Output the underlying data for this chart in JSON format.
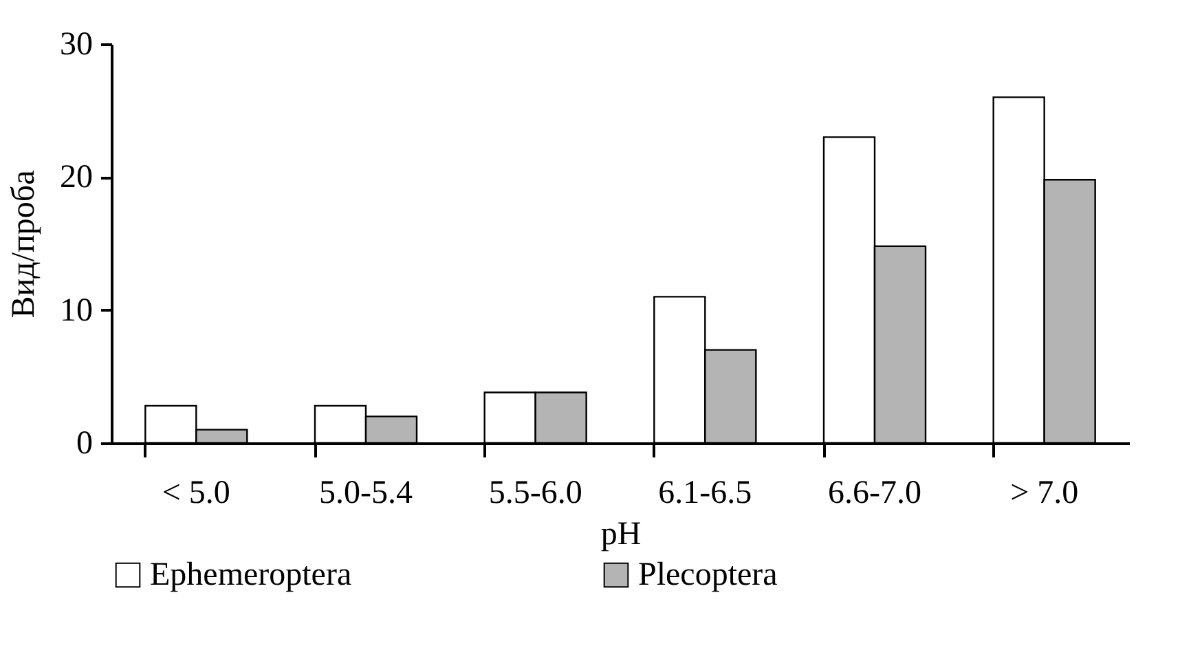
{
  "chart_data": {
    "type": "bar",
    "xlabel": "pH",
    "ylabel": "Вид/проба",
    "categories": [
      "< 5.0",
      "5.0-5.4",
      "5.5-6.0",
      "6.1-6.5",
      "6.6-7.0",
      "> 7.0"
    ],
    "series": [
      {
        "name": "Ephemeroptera",
        "color": "#ffffff",
        "values": [
          2.8,
          2.8,
          3.8,
          11,
          23,
          26
        ]
      },
      {
        "name": "Plecoptera",
        "color": "#b4b4b4",
        "values": [
          1,
          2,
          3.8,
          7,
          14.8,
          19.8
        ]
      }
    ],
    "ylim": [
      0,
      30
    ],
    "yticks": [
      0,
      10,
      20,
      30
    ],
    "grid": false,
    "legend": "bottom"
  }
}
